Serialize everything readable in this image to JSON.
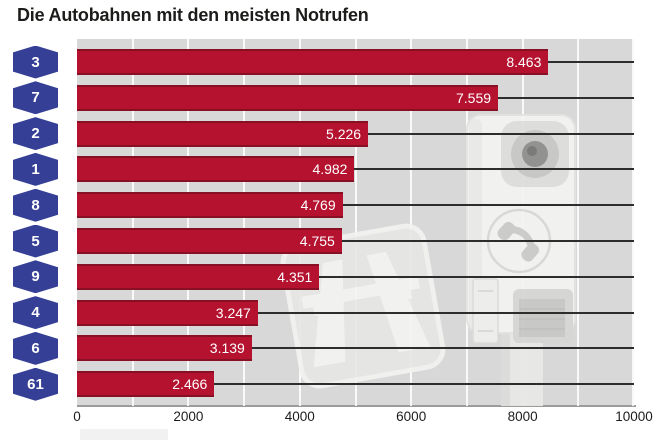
{
  "title": "Die Autobahnen mit den meisten Notrufen",
  "chart_data": {
    "type": "bar",
    "orientation": "horizontal",
    "title": "Die Autobahnen mit den meisten Notrufen",
    "categories": [
      "3",
      "7",
      "2",
      "1",
      "8",
      "5",
      "9",
      "4",
      "6",
      "61"
    ],
    "values": [
      8463,
      7559,
      5226,
      4982,
      4769,
      4755,
      4351,
      3247,
      3139,
      2466
    ],
    "value_labels": [
      "8.463",
      "7.559",
      "5.226",
      "4.982",
      "4.769",
      "4.755",
      "4.351",
      "3.247",
      "3.139",
      "2.466"
    ],
    "xlabel": "",
    "ylabel": "",
    "xlim": [
      0,
      10000
    ],
    "x_ticks": [
      0,
      2000,
      4000,
      6000,
      8000,
      10000
    ],
    "x_tick_labels": [
      "0",
      "2000",
      "4000",
      "6000",
      "8000",
      "10000"
    ],
    "minor_gridline_step": 1000,
    "grid": "white vertical gridlines on gray panel",
    "legend": null,
    "colors": {
      "bar": "#b4122f",
      "bar_edge": "#871024",
      "badge_blue": "#353f96",
      "badge_text": "#ffffff",
      "plot_background": "#d8d8d8",
      "gridline": "#ffffff",
      "leader_line": "#2d2d2d",
      "axis_line": "#9b9b9b",
      "value_text": "#ffffff",
      "tick_text": "#1c1c1c",
      "title_text": "#1c1c1a"
    }
  },
  "watermarks": {
    "sign_icon": "autobahn-sign-watermark",
    "callbox_icon": "emergency-callbox-watermark"
  }
}
